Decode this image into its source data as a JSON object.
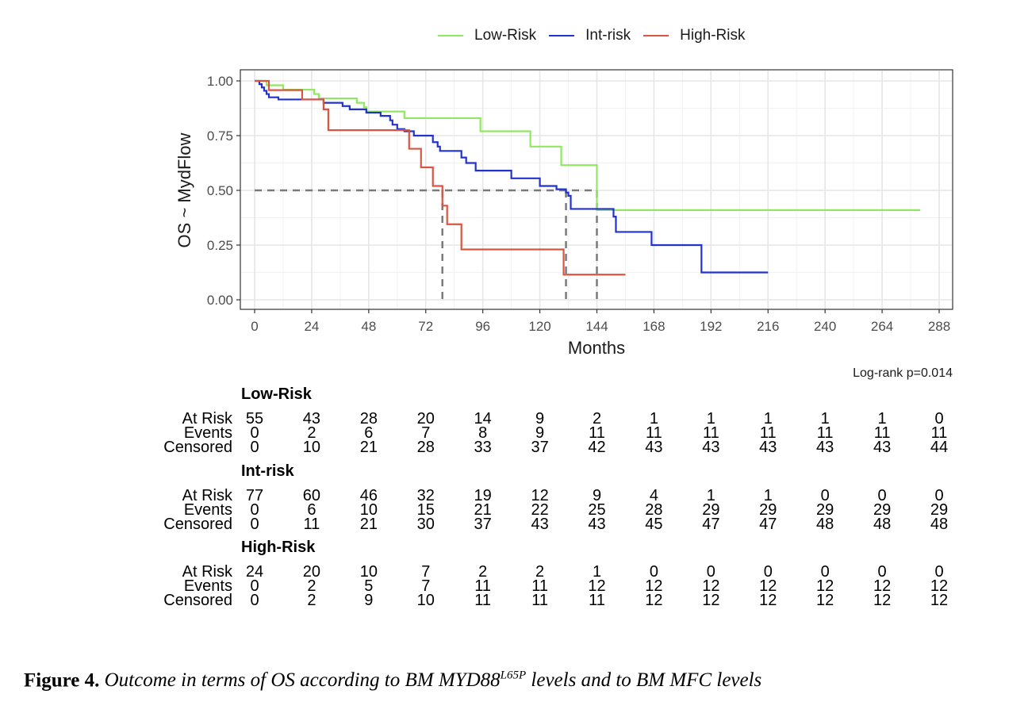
{
  "chart_data": {
    "type": "line",
    "subtype": "kaplan-meier step curves",
    "title": "",
    "xlabel": "Months",
    "ylabel": "OS ~ MydFlow",
    "xlim": [
      0,
      288
    ],
    "ylim": [
      0,
      1
    ],
    "xticks": [
      0,
      24,
      48,
      72,
      96,
      120,
      144,
      168,
      192,
      216,
      240,
      264,
      288
    ],
    "yticks": [
      0.0,
      0.25,
      0.5,
      0.75,
      1.0
    ],
    "ytick_labels": [
      "0.00",
      "0.25",
      "0.50",
      "0.75",
      "1.00"
    ],
    "grid": true,
    "legend_position": "top",
    "annotation": "Log-rank p=0.014",
    "median_lines": {
      "y": 0.5,
      "x": [
        79,
        131,
        144
      ]
    },
    "series": [
      {
        "name": "Low-Risk",
        "color": "#90e860",
        "steps": [
          [
            0,
            1.0
          ],
          [
            5,
            0.98
          ],
          [
            12,
            0.96
          ],
          [
            25,
            0.94
          ],
          [
            27,
            0.92
          ],
          [
            43,
            0.9
          ],
          [
            46,
            0.88
          ],
          [
            47,
            0.86
          ],
          [
            63,
            0.83
          ],
          [
            95,
            0.77
          ],
          [
            116,
            0.7
          ],
          [
            129,
            0.615
          ],
          [
            144,
            0.41
          ]
        ],
        "end": 280
      },
      {
        "name": "Int-risk",
        "color": "#2233cc",
        "steps": [
          [
            0,
            1.0
          ],
          [
            2,
            0.985
          ],
          [
            3,
            0.97
          ],
          [
            4,
            0.955
          ],
          [
            5,
            0.94
          ],
          [
            6,
            0.925
          ],
          [
            10,
            0.915
          ],
          [
            29,
            0.9
          ],
          [
            37,
            0.885
          ],
          [
            40,
            0.87
          ],
          [
            47,
            0.855
          ],
          [
            53,
            0.84
          ],
          [
            57,
            0.82
          ],
          [
            58,
            0.8
          ],
          [
            60,
            0.78
          ],
          [
            63,
            0.77
          ],
          [
            67,
            0.75
          ],
          [
            75,
            0.72
          ],
          [
            77,
            0.7
          ],
          [
            78,
            0.68
          ],
          [
            87,
            0.65
          ],
          [
            89,
            0.625
          ],
          [
            93,
            0.59
          ],
          [
            108,
            0.555
          ],
          [
            120,
            0.52
          ],
          [
            127,
            0.505
          ],
          [
            131,
            0.49
          ],
          [
            132,
            0.475
          ],
          [
            133,
            0.415
          ],
          [
            151,
            0.38
          ],
          [
            152,
            0.31
          ],
          [
            167,
            0.25
          ],
          [
            188,
            0.125
          ]
        ],
        "end": 216
      },
      {
        "name": "High-Risk",
        "color": "#d95540",
        "steps": [
          [
            0,
            1.0
          ],
          [
            6,
            0.958
          ],
          [
            20,
            0.915
          ],
          [
            29,
            0.87
          ],
          [
            31,
            0.775
          ],
          [
            65,
            0.69
          ],
          [
            70,
            0.605
          ],
          [
            75,
            0.52
          ],
          [
            79,
            0.43
          ],
          [
            81,
            0.345
          ],
          [
            87,
            0.23
          ],
          [
            130,
            0.115
          ]
        ],
        "end": 156
      }
    ]
  },
  "legend": [
    {
      "label": "Low-Risk",
      "color": "#90e860"
    },
    {
      "label": "Int-risk",
      "color": "#2233cc"
    },
    {
      "label": "High-Risk",
      "color": "#d95540"
    }
  ],
  "pvalue": "Log-rank p=0.014",
  "risk_table": {
    "time_points": [
      0,
      24,
      48,
      72,
      96,
      120,
      144,
      168,
      192,
      216,
      240,
      264,
      288
    ],
    "row_labels": [
      "At Risk",
      "Events",
      "Censored"
    ],
    "groups": [
      {
        "name": "Low-Risk",
        "at_risk": [
          55,
          43,
          28,
          20,
          14,
          9,
          2,
          1,
          1,
          1,
          1,
          1,
          0
        ],
        "events": [
          0,
          2,
          6,
          7,
          8,
          9,
          11,
          11,
          11,
          11,
          11,
          11,
          11
        ],
        "censored": [
          0,
          10,
          21,
          28,
          33,
          37,
          42,
          43,
          43,
          43,
          43,
          43,
          44
        ]
      },
      {
        "name": "Int-risk",
        "at_risk": [
          77,
          60,
          46,
          32,
          19,
          12,
          9,
          4,
          1,
          1,
          0,
          0,
          0
        ],
        "events": [
          0,
          6,
          10,
          15,
          21,
          22,
          25,
          28,
          29,
          29,
          29,
          29,
          29
        ],
        "censored": [
          0,
          11,
          21,
          30,
          37,
          43,
          43,
          45,
          47,
          47,
          48,
          48,
          48
        ]
      },
      {
        "name": "High-Risk",
        "at_risk": [
          24,
          20,
          10,
          7,
          2,
          2,
          1,
          0,
          0,
          0,
          0,
          0,
          0
        ],
        "events": [
          0,
          2,
          5,
          7,
          11,
          11,
          12,
          12,
          12,
          12,
          12,
          12,
          12
        ],
        "censored": [
          0,
          2,
          9,
          10,
          11,
          11,
          11,
          12,
          12,
          12,
          12,
          12,
          12
        ]
      }
    ]
  },
  "caption": {
    "label": "Figure 4.",
    "text_before": "Outcome in terms of OS according to BM MYD88",
    "superscript": "L65P",
    "text_after": " levels and to BM MFC levels"
  }
}
